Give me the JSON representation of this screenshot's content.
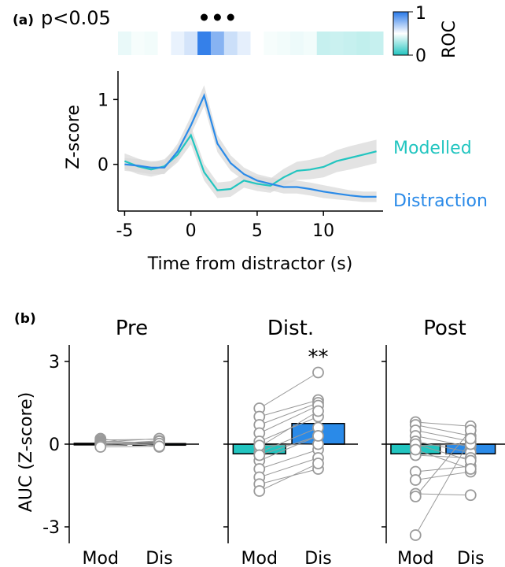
{
  "figure": {
    "panel_a_label": "(a)",
    "panel_b_label": "(b)",
    "significance_label": "p<0.05",
    "colors": {
      "modelled": "#22c5c0",
      "distraction": "#2a8ae8",
      "error_band": "#d9d9d9",
      "points": "#9a9a9a"
    }
  },
  "chart_data": [
    {
      "type": "heatmap",
      "name": "ROC strip",
      "x": [
        -5,
        -4,
        -3,
        -2,
        -1,
        0,
        1,
        2,
        3,
        4,
        5,
        6,
        7,
        8,
        9,
        10,
        11,
        12,
        13,
        14
      ],
      "values": [
        0.45,
        0.48,
        0.47,
        0.5,
        0.55,
        0.6,
        0.97,
        0.78,
        0.62,
        0.56,
        0.5,
        0.48,
        0.47,
        0.46,
        0.47,
        0.37,
        0.38,
        0.37,
        0.36,
        0.37
      ],
      "colorbar": {
        "label": "ROC",
        "ticks": [
          "0",
          "1"
        ],
        "min": 0,
        "max": 1
      },
      "significance_markers_x": [
        1,
        2,
        3
      ]
    },
    {
      "type": "line",
      "xlabel": "Time from distractor (s)",
      "ylabel": "Z-score",
      "xlim": [
        -5.5,
        14.5
      ],
      "ylim": [
        -0.72,
        1.32
      ],
      "xticks": [
        -5,
        0,
        5,
        10
      ],
      "xtick_labels": [
        "-5",
        "0",
        "5",
        "10"
      ],
      "yticks": [
        0,
        1
      ],
      "ytick_labels": [
        "0",
        "1"
      ],
      "x": [
        -5,
        -4,
        -3,
        -2,
        -1,
        0,
        1,
        2,
        3,
        4,
        5,
        6,
        7,
        8,
        9,
        10,
        11,
        12,
        13,
        14
      ],
      "series": [
        {
          "name": "Modelled",
          "values": [
            0.05,
            -0.03,
            -0.08,
            -0.03,
            0.15,
            0.45,
            -0.12,
            -0.4,
            -0.38,
            -0.25,
            -0.3,
            -0.33,
            -0.2,
            -0.1,
            -0.08,
            -0.04,
            0.05,
            0.1,
            0.15,
            0.2
          ],
          "err": [
            0.12,
            0.12,
            0.11,
            0.11,
            0.12,
            0.14,
            0.13,
            0.12,
            0.12,
            0.11,
            0.11,
            0.11,
            0.13,
            0.14,
            0.15,
            0.16,
            0.17,
            0.18,
            0.18,
            0.18
          ]
        },
        {
          "name": "Distraction",
          "values": [
            0.0,
            -0.02,
            -0.05,
            -0.05,
            0.2,
            0.6,
            1.06,
            0.32,
            0.02,
            -0.15,
            -0.25,
            -0.3,
            -0.35,
            -0.35,
            -0.38,
            -0.42,
            -0.45,
            -0.48,
            -0.5,
            -0.5
          ],
          "err": [
            0.1,
            0.1,
            0.1,
            0.1,
            0.12,
            0.14,
            0.16,
            0.13,
            0.12,
            0.1,
            0.1,
            0.1,
            0.1,
            0.1,
            0.1,
            0.1,
            0.09,
            0.08,
            0.08,
            0.08
          ]
        }
      ]
    },
    {
      "type": "bar",
      "ylabel": "AUC (Z-score)",
      "ylim": [
        -3.6,
        3.6
      ],
      "yticks": [
        -3,
        0,
        3
      ],
      "ytick_labels": [
        "-3",
        "0",
        "3"
      ],
      "categories": [
        "Mod",
        "Dis"
      ],
      "panels": [
        {
          "title": "Pre",
          "means": [
            0.03,
            0.02
          ],
          "significance": "",
          "mod_points": [
            0.2,
            0.15,
            0.1,
            0.08,
            0.05,
            0.03,
            0.0,
            -0.02,
            -0.05,
            -0.1
          ],
          "dis_points": [
            -0.1,
            0.18,
            0.05,
            0.2,
            -0.05,
            0.0,
            0.12,
            0.1,
            0.02,
            -0.08
          ]
        },
        {
          "title": "Dist.",
          "means": [
            -0.35,
            0.75
          ],
          "significance": "**",
          "mod_points": [
            1.3,
            1.0,
            0.7,
            0.4,
            0.1,
            -0.1,
            -0.3,
            -0.6,
            -0.9,
            -1.2,
            -1.45,
            -1.7,
            -0.05,
            -0.4
          ],
          "dis_points": [
            2.6,
            1.6,
            1.5,
            1.4,
            1.0,
            1.2,
            0.6,
            0.3,
            -0.2,
            -0.5,
            -0.9,
            -0.7,
            0.0,
            0.3
          ]
        },
        {
          "title": "Post",
          "means": [
            -0.35,
            -0.35
          ],
          "significance": "",
          "mod_points": [
            0.8,
            0.7,
            0.5,
            0.3,
            0.1,
            -0.05,
            -0.4,
            -1.0,
            -1.3,
            -1.8,
            -1.9,
            -3.3,
            0.0,
            -0.2
          ],
          "dis_points": [
            0.65,
            0.3,
            0.1,
            -0.1,
            -0.3,
            0.0,
            -0.5,
            -0.8,
            -1.0,
            -1.85,
            0.5,
            0.2,
            -0.6,
            -0.9
          ]
        }
      ]
    }
  ]
}
